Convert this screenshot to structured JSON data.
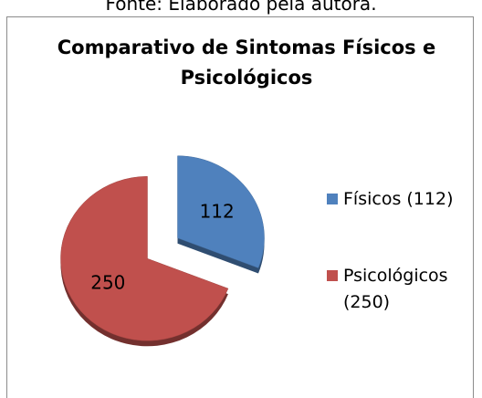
{
  "caption": "Fonte: Elaborado pela autora.",
  "chart_data": {
    "type": "pie",
    "title": "Comparativo de Sintomas Físicos e Psicológicos",
    "categories": [
      "Físicos (112)",
      "Psicológicos (250)"
    ],
    "values": [
      112,
      250
    ],
    "colors": [
      "#4f81bd",
      "#c0504d"
    ],
    "legend": "right"
  }
}
